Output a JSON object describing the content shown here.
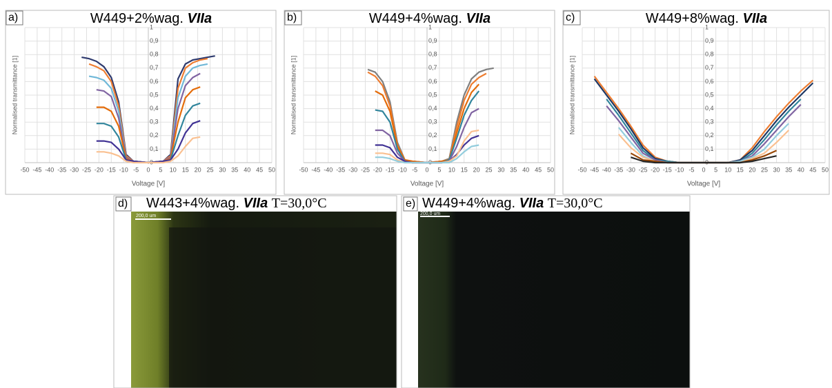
{
  "chart_data": [
    {
      "type": "line",
      "panel_label": "a)",
      "title": "W449+2%wag.",
      "title_emphasis": "VIIa",
      "xlabel": "Voltage [V]",
      "ylabel": "Normalised transmittance [1]",
      "x": [
        -27,
        -24,
        -21,
        -18,
        -15,
        -12,
        -9,
        -6,
        0,
        6,
        9,
        12,
        15,
        18,
        21,
        24,
        27
      ],
      "series": [
        {
          "color": "#2e3a6e",
          "values": [
            0.78,
            0.77,
            0.75,
            0.71,
            0.63,
            0.45,
            0.06,
            0.01,
            0,
            0.01,
            0.06,
            0.62,
            0.73,
            0.76,
            0.77,
            0.78,
            0.79
          ]
        },
        {
          "color": "#ed7d31",
          "values": [
            null,
            0.73,
            0.71,
            0.68,
            0.6,
            0.42,
            0.05,
            0.01,
            0,
            0.01,
            0.05,
            0.55,
            0.7,
            0.74,
            0.76,
            0.77,
            null
          ]
        },
        {
          "color": "#70b8d8",
          "values": [
            null,
            0.64,
            0.63,
            0.61,
            0.55,
            0.38,
            0.04,
            0.01,
            0,
            0.01,
            0.04,
            0.48,
            0.64,
            0.7,
            0.72,
            0.73,
            null
          ]
        },
        {
          "color": "#8064a2",
          "values": [
            null,
            null,
            0.54,
            0.53,
            0.49,
            0.33,
            0.04,
            0.01,
            0,
            0.01,
            0.04,
            0.4,
            0.57,
            0.63,
            0.66,
            null,
            null
          ]
        },
        {
          "color": "#e46c0a",
          "values": [
            null,
            null,
            0.41,
            0.41,
            0.38,
            0.27,
            0.03,
            0.01,
            0,
            0.01,
            0.03,
            0.3,
            0.48,
            0.54,
            0.56,
            null,
            null
          ]
        },
        {
          "color": "#31859c",
          "values": [
            null,
            null,
            0.29,
            0.29,
            0.27,
            0.19,
            0.02,
            0.01,
            0,
            0.01,
            0.02,
            0.2,
            0.35,
            0.42,
            0.44,
            null,
            null
          ]
        },
        {
          "color": "#403294",
          "values": [
            null,
            null,
            0.16,
            0.16,
            0.15,
            0.1,
            0.02,
            0.01,
            0,
            0.01,
            0.02,
            0.1,
            0.22,
            0.29,
            0.31,
            null,
            null
          ]
        },
        {
          "color": "#fac090",
          "values": [
            null,
            null,
            0.08,
            0.08,
            0.07,
            0.05,
            0.01,
            0,
            0,
            0,
            0.01,
            0.05,
            0.12,
            0.18,
            0.19,
            null,
            null
          ]
        }
      ],
      "xlim": [
        -50,
        50
      ],
      "ylim": [
        0,
        1
      ],
      "xticks": [
        -50,
        -45,
        -40,
        -35,
        -30,
        -25,
        -20,
        -15,
        -10,
        -5,
        0,
        5,
        10,
        15,
        20,
        25,
        30,
        35,
        40,
        45,
        50
      ],
      "yticks": [
        0,
        {
          "value": 0.1,
          "label": "0,1"
        },
        {
          "value": 0.2,
          "label": "0,2"
        },
        {
          "value": 0.3,
          "label": "0,3"
        },
        {
          "value": 0.4,
          "label": "0,4"
        },
        {
          "value": 0.5,
          "label": "0,5"
        },
        {
          "value": 0.6,
          "label": "0,6"
        },
        {
          "value": 0.7,
          "label": "0,7"
        },
        {
          "value": 0.8,
          "label": "0,8"
        },
        {
          "value": 0.9,
          "label": "0,9"
        },
        1
      ],
      "grid": true
    },
    {
      "type": "line",
      "panel_label": "b)",
      "title": "W449+4%wag.",
      "title_emphasis": "VIIa",
      "xlabel": "Voltage [V]",
      "ylabel": "Normalised transmittance [1]",
      "x": [
        -27,
        -24,
        -21,
        -18,
        -15,
        -12,
        -9,
        -6,
        0,
        6,
        9,
        12,
        15,
        18,
        21,
        24,
        27
      ],
      "series": [
        {
          "color": "#7f7f7f",
          "values": [
            null,
            0.69,
            0.67,
            0.6,
            0.45,
            0.15,
            0.02,
            0.01,
            0,
            0.01,
            0.03,
            0.3,
            0.5,
            0.62,
            0.67,
            0.69,
            0.7
          ]
        },
        {
          "color": "#ed7d31",
          "values": [
            null,
            0.67,
            0.64,
            0.57,
            0.42,
            0.13,
            0.02,
            0.01,
            0,
            0.01,
            0.02,
            0.26,
            0.46,
            0.58,
            0.63,
            0.66,
            null
          ]
        },
        {
          "color": "#e46c0a",
          "values": [
            null,
            null,
            0.53,
            0.5,
            0.38,
            0.12,
            0.02,
            0.01,
            0,
            0.01,
            0.02,
            0.22,
            0.4,
            0.52,
            0.58,
            null,
            null
          ]
        },
        {
          "color": "#31859c",
          "values": [
            null,
            null,
            0.39,
            0.38,
            0.3,
            0.1,
            0.01,
            0,
            0,
            0,
            0.02,
            0.18,
            0.35,
            0.46,
            0.53,
            null,
            null
          ]
        },
        {
          "color": "#8064a2",
          "values": [
            null,
            null,
            0.24,
            0.24,
            0.2,
            0.07,
            0.01,
            0,
            0,
            0,
            0.01,
            0.12,
            0.26,
            0.37,
            0.4,
            null,
            null
          ]
        },
        {
          "color": "#403294",
          "values": [
            null,
            null,
            0.13,
            0.13,
            0.11,
            0.04,
            0.01,
            0,
            0,
            0,
            0.01,
            0.06,
            0.13,
            0.18,
            0.2,
            null,
            null
          ]
        },
        {
          "color": "#fac090",
          "values": [
            null,
            null,
            0.07,
            0.07,
            0.06,
            0.02,
            0,
            0,
            0,
            0,
            0.01,
            0.05,
            0.16,
            0.23,
            0.24,
            null,
            null
          ]
        },
        {
          "color": "#93cddd",
          "values": [
            null,
            null,
            0.04,
            0.04,
            0.03,
            0.01,
            0,
            0,
            0,
            0,
            0,
            0.03,
            0.08,
            0.12,
            0.13,
            null,
            null
          ]
        }
      ],
      "xlim": [
        -50,
        50
      ],
      "ylim": [
        0,
        1
      ],
      "xticks": [
        -50,
        -45,
        -40,
        -35,
        -30,
        -25,
        -20,
        -15,
        -10,
        -5,
        0,
        5,
        10,
        15,
        20,
        25,
        30,
        35,
        40,
        45,
        50
      ],
      "yticks": [
        0,
        {
          "value": 0.1,
          "label": "0,1"
        },
        {
          "value": 0.2,
          "label": "0,2"
        },
        {
          "value": 0.3,
          "label": "0,3"
        },
        {
          "value": 0.4,
          "label": "0,4"
        },
        {
          "value": 0.5,
          "label": "0,5"
        },
        {
          "value": 0.6,
          "label": "0,6"
        },
        {
          "value": 0.7,
          "label": "0,7"
        },
        {
          "value": 0.8,
          "label": "0,8"
        },
        {
          "value": 0.9,
          "label": "0,9"
        },
        1
      ],
      "grid": true
    },
    {
      "type": "line",
      "panel_label": "c)",
      "title": "W449+8%wag.",
      "title_emphasis": "VIIa",
      "xlabel": "Voltage [V]",
      "ylabel": "Normalised transmittance [1]",
      "x": [
        -45,
        -40,
        -35,
        -30,
        -25,
        -20,
        -15,
        -10,
        0,
        10,
        15,
        20,
        25,
        30,
        35,
        40,
        45
      ],
      "series": [
        {
          "color": "#ed7d31",
          "values": [
            0.64,
            0.52,
            0.4,
            0.27,
            0.13,
            0.04,
            0.01,
            0,
            0,
            0,
            0.02,
            0.11,
            0.23,
            0.34,
            0.44,
            0.53,
            0.61
          ]
        },
        {
          "color": "#1f3864",
          "values": [
            0.62,
            0.5,
            0.38,
            0.25,
            0.11,
            0.03,
            0.01,
            0,
            0,
            0,
            0.02,
            0.09,
            0.2,
            0.31,
            0.41,
            0.5,
            0.59
          ]
        },
        {
          "color": "#31859c",
          "values": [
            null,
            0.47,
            0.35,
            0.22,
            0.09,
            0.02,
            0.01,
            0,
            0,
            0,
            0.01,
            0.07,
            0.17,
            0.28,
            0.38,
            0.47,
            null
          ]
        },
        {
          "color": "#8064a2",
          "values": [
            null,
            0.42,
            0.31,
            0.19,
            0.07,
            0.02,
            0,
            0,
            0,
            0,
            0.01,
            0.05,
            0.14,
            0.24,
            0.34,
            0.43,
            null
          ]
        },
        {
          "color": "#93cddd",
          "values": [
            null,
            null,
            0.26,
            0.15,
            0.05,
            0.01,
            0,
            0,
            0,
            0,
            0.01,
            0.04,
            0.1,
            0.2,
            0.29,
            null,
            null
          ]
        },
        {
          "color": "#fac090",
          "values": [
            null,
            null,
            0.21,
            0.11,
            0.04,
            0.01,
            0,
            0,
            0,
            0,
            0,
            0.03,
            0.07,
            0.15,
            0.24,
            null,
            null
          ]
        },
        {
          "color": "#984807",
          "values": [
            null,
            null,
            null,
            0.07,
            0.02,
            0.01,
            0,
            0,
            0,
            0,
            0,
            0.02,
            0.05,
            0.09,
            null,
            null,
            null
          ]
        },
        {
          "color": "#262626",
          "values": [
            null,
            null,
            null,
            0.04,
            0.01,
            0,
            0,
            0,
            0,
            0,
            0,
            0.01,
            0.03,
            0.05,
            null,
            null,
            null
          ]
        }
      ],
      "xlim": [
        -50,
        50
      ],
      "ylim": [
        0,
        1
      ],
      "xticks": [
        -50,
        -45,
        -40,
        -35,
        -30,
        -25,
        -20,
        -15,
        -10,
        -5,
        0,
        5,
        10,
        15,
        20,
        25,
        30,
        35,
        40,
        45,
        50
      ],
      "yticks": [
        0,
        {
          "value": 0.1,
          "label": "0,1"
        },
        {
          "value": 0.2,
          "label": "0,2"
        },
        {
          "value": 0.3,
          "label": "0,3"
        },
        {
          "value": 0.4,
          "label": "0,4"
        },
        {
          "value": 0.5,
          "label": "0,5"
        },
        {
          "value": 0.6,
          "label": "0,6"
        },
        {
          "value": 0.7,
          "label": "0,7"
        },
        {
          "value": 0.8,
          "label": "0,8"
        },
        {
          "value": 0.9,
          "label": "0,9"
        },
        1
      ],
      "grid": true
    }
  ],
  "images": [
    {
      "label": "d)",
      "title": "W443+4%wag.",
      "emphasis": "VIIa",
      "condition": "T=30,0°C",
      "scale": "200,0 um"
    },
    {
      "label": "e)",
      "title": "W449+4%wag.",
      "emphasis": "VIIa",
      "condition": "T=30,0°C",
      "scale": "200,0 um"
    }
  ]
}
